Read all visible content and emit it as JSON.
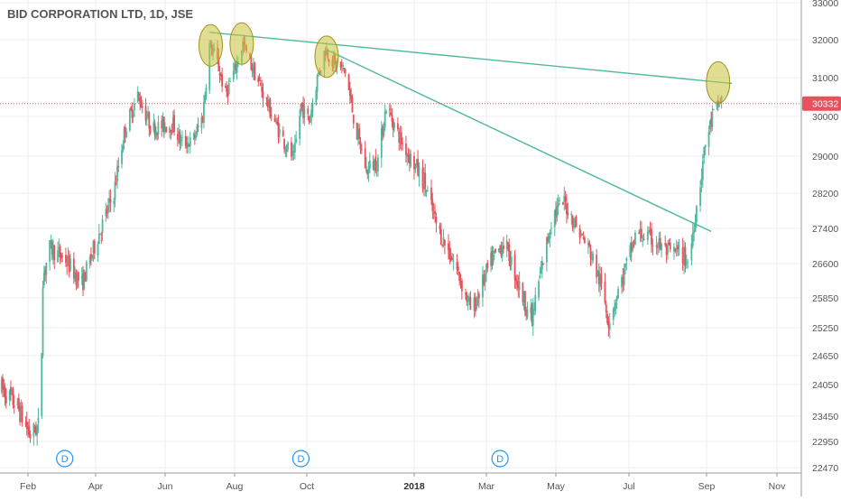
{
  "chart_data": {
    "type": "candlestick",
    "title": "BID CORPORATION LTD, 1D, JSE",
    "x_axis": {
      "ticks": [
        {
          "label": "Feb",
          "date": "2017-02-01"
        },
        {
          "label": "Apr",
          "date": "2017-04-01"
        },
        {
          "label": "Jun",
          "date": "2017-06-01"
        },
        {
          "label": "Aug",
          "date": "2017-08-01"
        },
        {
          "label": "Oct",
          "date": "2017-10-01"
        },
        {
          "label": "2018",
          "date": "2018-01-01",
          "bold": true
        },
        {
          "label": "Mar",
          "date": "2018-03-01"
        },
        {
          "label": "May",
          "date": "2018-05-01"
        },
        {
          "label": "Jul",
          "date": "2018-07-01"
        },
        {
          "label": "Sep",
          "date": "2018-09-01"
        },
        {
          "label": "Nov",
          "date": "2018-11-01"
        }
      ],
      "range": [
        "2017-01-08",
        "2018-11-16"
      ]
    },
    "y_axis": {
      "ticks": [
        {
          "label": "33000",
          "value": 33000
        },
        {
          "label": "32000",
          "value": 32000
        },
        {
          "label": "31000",
          "value": 31000
        },
        {
          "label": "30000",
          "value": 30000
        },
        {
          "label": "29000",
          "value": 29000
        },
        {
          "label": "28200",
          "value": 28200
        },
        {
          "label": "27400",
          "value": 27400
        },
        {
          "label": "26600",
          "value": 26600
        },
        {
          "label": "25850",
          "value": 25850
        },
        {
          "label": "25250",
          "value": 25250
        },
        {
          "label": "24650",
          "value": 24650
        },
        {
          "label": "24050",
          "value": 24050
        },
        {
          "label": "23450",
          "value": 23450
        },
        {
          "label": "22950",
          "value": 22950
        },
        {
          "label": "22470",
          "value": 22470
        }
      ],
      "position": "right"
    },
    "last_price": {
      "label": "30332",
      "value": 30332,
      "color": "#e8505b"
    },
    "series": [
      {
        "points": [
          [
            "2017-01-09",
            23986
          ],
          [
            "2017-01-23",
            23625
          ],
          [
            "2017-02-03",
            23073
          ],
          [
            "2017-02-12",
            23300
          ],
          [
            "2017-02-14",
            26300
          ],
          [
            "2017-02-20",
            26955
          ],
          [
            "2017-03-06",
            26686
          ],
          [
            "2017-03-20",
            26143
          ],
          [
            "2017-04-03",
            27220
          ],
          [
            "2017-04-17",
            28200
          ],
          [
            "2017-04-27",
            29700
          ],
          [
            "2017-05-08",
            30550
          ],
          [
            "2017-05-20",
            29700
          ],
          [
            "2017-06-08",
            29800
          ],
          [
            "2017-06-15",
            29350
          ],
          [
            "2017-06-25",
            29350
          ],
          [
            "2017-07-04",
            30000
          ],
          [
            "2017-07-10",
            31850
          ],
          [
            "2017-07-16",
            31500
          ],
          [
            "2017-07-24",
            30550
          ],
          [
            "2017-08-01",
            31200
          ],
          [
            "2017-08-08",
            31900
          ],
          [
            "2017-08-14",
            31400
          ],
          [
            "2017-08-22",
            30825
          ],
          [
            "2017-09-02",
            30000
          ],
          [
            "2017-09-12",
            29350
          ],
          [
            "2017-09-20",
            28925
          ],
          [
            "2017-09-26",
            30275
          ],
          [
            "2017-10-03",
            29900
          ],
          [
            "2017-10-10",
            31000
          ],
          [
            "2017-10-17",
            31750
          ],
          [
            "2017-10-25",
            31350
          ],
          [
            "2017-11-03",
            31175
          ],
          [
            "2017-11-12",
            29650
          ],
          [
            "2017-11-21",
            28700
          ],
          [
            "2017-12-01",
            28925
          ],
          [
            "2017-12-08",
            30275
          ],
          [
            "2017-12-22",
            29300
          ],
          [
            "2018-01-09",
            28450
          ],
          [
            "2018-01-20",
            27400
          ],
          [
            "2018-02-03",
            26600
          ],
          [
            "2018-02-17",
            25550
          ],
          [
            "2018-03-04",
            26600
          ],
          [
            "2018-03-17",
            27100
          ],
          [
            "2018-03-31",
            26000
          ],
          [
            "2018-04-10",
            25400
          ],
          [
            "2018-04-17",
            26300
          ],
          [
            "2018-04-28",
            27700
          ],
          [
            "2018-05-08",
            28000
          ],
          [
            "2018-05-19",
            27400
          ],
          [
            "2018-05-30",
            26850
          ],
          [
            "2018-06-09",
            26000
          ],
          [
            "2018-06-14",
            25400
          ],
          [
            "2018-06-26",
            26300
          ],
          [
            "2018-07-07",
            27300
          ],
          [
            "2018-07-22",
            27100
          ],
          [
            "2018-08-01",
            26850
          ],
          [
            "2018-08-11",
            26850
          ],
          [
            "2018-08-18",
            26600
          ],
          [
            "2018-08-22",
            27550
          ],
          [
            "2018-08-27",
            28450
          ],
          [
            "2018-08-31",
            29300
          ],
          [
            "2018-09-06",
            30000
          ],
          [
            "2018-09-11",
            30275
          ],
          [
            "2018-09-16",
            30600
          ]
        ]
      }
    ],
    "trendlines": [
      {
        "from": [
          "2017-07-10",
          32200
        ],
        "to": [
          "2018-09-23",
          30850
        ],
        "color": "#4fb99e"
      },
      {
        "from": [
          "2017-10-17",
          31750
        ],
        "to": [
          "2018-09-05",
          27330
        ],
        "color": "#4fb99e"
      }
    ],
    "highlight_circles": [
      {
        "center": [
          "2017-07-11",
          31850
        ],
        "color": "#c8c23a"
      },
      {
        "center": [
          "2017-08-07",
          31900
        ],
        "color": "#c8c23a"
      },
      {
        "center": [
          "2017-10-18",
          31550
        ],
        "color": "#c8c23a"
      },
      {
        "center": [
          "2018-09-11",
          30875
        ],
        "color": "#c8c23a"
      }
    ],
    "dividend_markers": [
      {
        "label": "D",
        "date": "2017-03-05"
      },
      {
        "label": "D",
        "date": "2017-09-26"
      },
      {
        "label": "D",
        "date": "2018-03-13"
      }
    ],
    "colors": {
      "up": "#4fb99e",
      "down": "#e8505b",
      "grid": "#eeeeee",
      "axis": "#999999"
    },
    "grid": true
  }
}
